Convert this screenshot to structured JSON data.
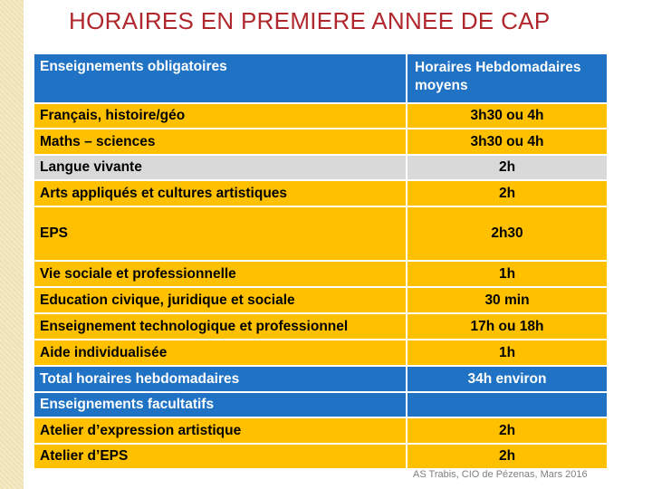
{
  "title": "HORAIRES EN PREMIERE ANNEE DE CAP",
  "table": {
    "header": {
      "col1": "Enseignements obligatoires",
      "col2": "Horaires Hebdomadaires moyens"
    },
    "rows": [
      {
        "label": "Français, histoire/géo",
        "value": "3h30 ou 4h",
        "color": "#ffc000"
      },
      {
        "label": "Maths – sciences",
        "value": "3h30 ou 4h",
        "color": "#ffc000"
      },
      {
        "label": "Langue vivante",
        "value": "2h",
        "color": "#d9d9d9"
      },
      {
        "label": "Arts appliqués et cultures artistiques",
        "value": "2h",
        "color": "#ffc000"
      },
      {
        "label": "EPS",
        "value": "2h30",
        "color": "#ffc000"
      },
      {
        "label": "Vie sociale et professionnelle",
        "value": "1h",
        "color": "#ffc000"
      },
      {
        "label": "Education civique, juridique et sociale",
        "value": "30 min",
        "color": "#ffc000"
      },
      {
        "label": "Enseignement technologique et professionnel",
        "value": "17h ou 18h",
        "color": "#ffc000"
      },
      {
        "label": "Aide individualisée",
        "value": "1h",
        "color": "#ffc000"
      },
      {
        "label": "Total horaires hebdomadaires",
        "value": "34h environ",
        "color": "#1f72c4"
      },
      {
        "label": "Enseignements facultatifs",
        "value": "",
        "color": "#1f72c4"
      },
      {
        "label": "Atelier d’expression artistique",
        "value": "2h",
        "color": "#ffc000"
      },
      {
        "label": "Atelier d’EPS",
        "value": "2h",
        "color": "#ffc000"
      }
    ]
  },
  "credit": "AS Trabis, CIO de Pézenas, Mars 2016"
}
